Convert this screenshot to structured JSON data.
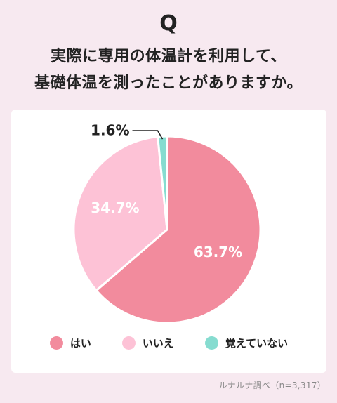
{
  "header": {
    "q_mark": "Q",
    "question_lines": [
      "実際に専用の体温計を利用して、",
      "基礎体温を測ったことがありますか。"
    ]
  },
  "chart_data": {
    "type": "pie",
    "title": "",
    "start_angle_deg": 0,
    "direction": "clockwise",
    "categories": [
      "はい",
      "いいえ",
      "覚えていない"
    ],
    "values": [
      63.7,
      34.7,
      1.6
    ],
    "labels": [
      "63.7%",
      "34.7%",
      "1.6%"
    ],
    "colors": [
      "#f28b9d",
      "#fdc2d6",
      "#86dcd0"
    ],
    "legend_position": "bottom"
  },
  "source": "ルナルナ調べ（n=3,317）"
}
